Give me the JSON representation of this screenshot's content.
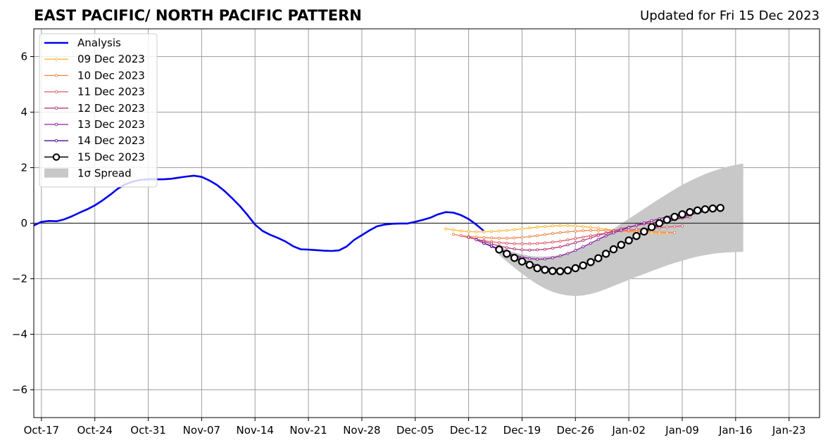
{
  "header": {
    "title": "EAST PACIFIC/ NORTH PACIFIC PATTERN",
    "updated": "Updated for Fri 15 Dec 2023"
  },
  "chart_data": {
    "type": "line",
    "title": "EAST PACIFIC/ NORTH PACIFIC PATTERN",
    "subtitle": "Updated for Fri 15 Dec 2023",
    "x_tick_labels": [
      "Oct-17",
      "Oct-24",
      "Oct-31",
      "Nov-07",
      "Nov-14",
      "Nov-21",
      "Nov-28",
      "Dec-05",
      "Dec-12",
      "Dec-19",
      "Dec-26",
      "Jan-02",
      "Jan-09",
      "Jan-16",
      "Jan-23"
    ],
    "xlim": [
      "2023-10-16",
      "2024-01-27"
    ],
    "ylim": [
      -7,
      7
    ],
    "y_ticks": [
      -6,
      -4,
      -2,
      0,
      2,
      4,
      6
    ],
    "y_tick_labels": [
      "−6",
      "−4",
      "−2",
      "0",
      "2",
      "4",
      "6"
    ],
    "grid": true,
    "legend_position": "top-left",
    "series": [
      {
        "name": "Analysis",
        "color": "#0000ee",
        "start": "2023-10-16",
        "values": [
          -0.08,
          0.05,
          0.08,
          0.07,
          0.14,
          0.25,
          0.38,
          0.5,
          0.64,
          0.82,
          1.02,
          1.24,
          1.4,
          1.5,
          1.56,
          1.58,
          1.58,
          1.58,
          1.6,
          1.64,
          1.68,
          1.71,
          1.67,
          1.54,
          1.38,
          1.16,
          0.9,
          0.62,
          0.3,
          -0.05,
          -0.28,
          -0.42,
          -0.53,
          -0.66,
          -0.83,
          -0.94,
          -0.95,
          -0.97,
          -0.99,
          -1.0,
          -0.98,
          -0.84,
          -0.6,
          -0.43,
          -0.26,
          -0.11,
          -0.05,
          -0.02,
          -0.01,
          -0.01,
          0.05,
          0.12,
          0.2,
          0.32,
          0.4,
          0.38,
          0.29,
          0.15,
          -0.05,
          -0.28
        ]
      },
      {
        "name": "09 Dec 2023",
        "color": "#fcb636",
        "start": "2023-12-09",
        "values": [
          -0.2,
          -0.24,
          -0.28,
          -0.3,
          -0.31,
          -0.31,
          -0.3,
          -0.28,
          -0.26,
          -0.23,
          -0.2,
          -0.17,
          -0.14,
          -0.12,
          -0.1,
          -0.09,
          -0.09,
          -0.1,
          -0.12,
          -0.15,
          -0.18,
          -0.22,
          -0.25,
          -0.28,
          -0.3,
          -0.32,
          -0.34,
          -0.36,
          -0.37,
          -0.38
        ]
      },
      {
        "name": "10 Dec 2023",
        "color": "#f3844a",
        "start": "2023-12-10",
        "values": [
          -0.4,
          -0.45,
          -0.48,
          -0.5,
          -0.52,
          -0.53,
          -0.54,
          -0.54,
          -0.53,
          -0.51,
          -0.48,
          -0.45,
          -0.41,
          -0.37,
          -0.34,
          -0.31,
          -0.29,
          -0.27,
          -0.26,
          -0.26,
          -0.26,
          -0.26,
          -0.27,
          -0.28,
          -0.28,
          -0.29,
          -0.3,
          -0.32,
          -0.33,
          -0.34
        ]
      },
      {
        "name": "11 Dec 2023",
        "color": "#e05c68",
        "start": "2023-12-11",
        "values": [
          -0.45,
          -0.52,
          -0.58,
          -0.63,
          -0.67,
          -0.7,
          -0.72,
          -0.74,
          -0.74,
          -0.74,
          -0.73,
          -0.71,
          -0.68,
          -0.65,
          -0.6,
          -0.55,
          -0.5,
          -0.45,
          -0.4,
          -0.36,
          -0.32,
          -0.28,
          -0.25,
          -0.22,
          -0.2,
          -0.18,
          -0.16,
          -0.14,
          -0.12,
          -0.1
        ]
      },
      {
        "name": "12 Dec 2023",
        "color": "#b73779",
        "start": "2023-12-12",
        "values": [
          -0.5,
          -0.58,
          -0.66,
          -0.74,
          -0.82,
          -0.88,
          -0.93,
          -0.96,
          -0.97,
          -0.96,
          -0.94,
          -0.9,
          -0.85,
          -0.78,
          -0.7,
          -0.62,
          -0.53,
          -0.44,
          -0.36,
          -0.28,
          -0.2,
          -0.14,
          -0.08,
          -0.03,
          0.02,
          0.06,
          0.1,
          0.14,
          0.18,
          0.22
        ]
      },
      {
        "name": "13 Dec 2023",
        "color": "#8a22a0",
        "start": "2023-12-13",
        "values": [
          -0.6,
          -0.72,
          -0.84,
          -0.96,
          -1.06,
          -1.15,
          -1.22,
          -1.27,
          -1.3,
          -1.29,
          -1.25,
          -1.18,
          -1.09,
          -0.98,
          -0.85,
          -0.72,
          -0.58,
          -0.46,
          -0.35,
          -0.25,
          -0.16,
          -0.07,
          0.01,
          0.09,
          0.16,
          0.23,
          0.3,
          0.36,
          0.42,
          0.48
        ]
      },
      {
        "name": "14 Dec 2023",
        "color": "#4a0a8c",
        "start": "2023-12-14",
        "values": [
          -0.72,
          -0.82,
          -0.93,
          -1.05,
          -1.17,
          -1.3,
          -1.42,
          -1.52,
          -1.6,
          -1.65,
          -1.67,
          -1.65,
          -1.6,
          -1.52,
          -1.4,
          -1.26,
          -1.1,
          -0.94,
          -0.78,
          -0.62,
          -0.47,
          -0.33,
          -0.2,
          -0.08,
          0.03,
          0.13,
          0.22,
          0.3,
          0.37,
          0.43
        ]
      },
      {
        "name": "15 Dec 2023",
        "color": "#000000",
        "start": "2023-12-16",
        "values": [
          -0.95,
          -1.1,
          -1.25,
          -1.38,
          -1.5,
          -1.62,
          -1.68,
          -1.72,
          -1.73,
          -1.7,
          -1.62,
          -1.52,
          -1.4,
          -1.26,
          -1.1,
          -0.94,
          -0.78,
          -0.62,
          -0.46,
          -0.3,
          -0.14,
          0.0,
          0.12,
          0.23,
          0.32,
          0.4,
          0.46,
          0.5,
          0.53,
          0.55
        ]
      }
    ],
    "spread": {
      "name": "1σ Spread",
      "color": "#c8c8c8",
      "start": "2023-12-16",
      "upper": [
        -0.85,
        -0.95,
        -1.05,
        -1.12,
        -1.18,
        -1.2,
        -1.2,
        -1.18,
        -1.14,
        -1.07,
        -0.98,
        -0.86,
        -0.72,
        -0.55,
        -0.38,
        -0.2,
        -0.02,
        0.16,
        0.34,
        0.52,
        0.7,
        0.88,
        1.05,
        1.22,
        1.38,
        1.52,
        1.65,
        1.77,
        1.87,
        1.96,
        2.04,
        2.1,
        2.15
      ],
      "lower": [
        -1.15,
        -1.38,
        -1.6,
        -1.82,
        -2.02,
        -2.2,
        -2.35,
        -2.47,
        -2.55,
        -2.6,
        -2.62,
        -2.6,
        -2.55,
        -2.47,
        -2.37,
        -2.26,
        -2.15,
        -2.04,
        -1.93,
        -1.83,
        -1.72,
        -1.62,
        -1.52,
        -1.43,
        -1.35,
        -1.27,
        -1.2,
        -1.15,
        -1.1,
        -1.07,
        -1.05,
        -1.04,
        -1.03
      ]
    }
  }
}
